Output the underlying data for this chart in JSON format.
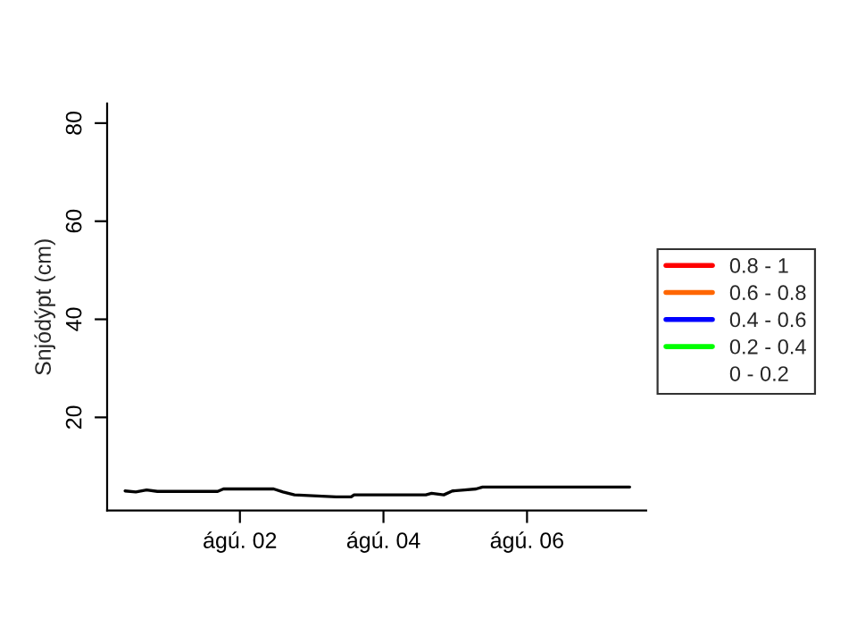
{
  "chart_data": {
    "type": "line",
    "ylabel": "Snjódýpt (cm)",
    "x": [
      0.4,
      0.55,
      0.7,
      0.85,
      1.69,
      1.77,
      2.47,
      2.6,
      2.76,
      3.34,
      3.55,
      3.59,
      4.59,
      4.67,
      4.84,
      4.96,
      5.13,
      5.29,
      5.38,
      7.43
    ],
    "series": [
      {
        "color": "#000000",
        "values": [
          5.0,
          4.8,
          5.2,
          4.9,
          4.9,
          5.4,
          5.4,
          4.8,
          4.2,
          3.8,
          3.8,
          4.2,
          4.2,
          4.5,
          4.2,
          5.0,
          5.2,
          5.4,
          5.8,
          5.8
        ]
      },
      {
        "name": "0.8 - 1",
        "color": "#ff0000",
        "values": [
          null,
          null,
          null,
          null,
          null,
          null,
          null,
          null,
          null,
          null,
          null,
          null,
          null,
          null,
          null,
          null,
          null,
          null,
          null,
          null
        ]
      },
      {
        "name": "0.6 - 0.8",
        "color": "#ff6600",
        "values": [
          null,
          null,
          null,
          null,
          null,
          null,
          null,
          null,
          null,
          null,
          null,
          null,
          null,
          null,
          null,
          null,
          null,
          null,
          null,
          null
        ]
      },
      {
        "name": "0.4 - 0.6",
        "color": "#0000ff",
        "values": [
          null,
          null,
          null,
          null,
          null,
          null,
          null,
          null,
          null,
          null,
          null,
          null,
          null,
          null,
          null,
          null,
          null,
          null,
          null,
          null
        ]
      },
      {
        "name": "0.2 - 0.4",
        "color": "#00ff00",
        "values": [
          null,
          null,
          null,
          null,
          null,
          null,
          null,
          null,
          null,
          null,
          null,
          null,
          null,
          null,
          null,
          null,
          null,
          null,
          null,
          null
        ]
      },
      {
        "name": "0 - 0.2",
        "values": [
          null,
          null,
          null,
          null,
          null,
          null,
          null,
          null,
          null,
          null,
          null,
          null,
          null,
          null,
          null,
          null,
          null,
          null,
          null,
          null
        ]
      }
    ],
    "xlim": [
      0.15,
      7.66
    ],
    "xticks": [
      {
        "value": 2,
        "label": "ágú. 02"
      },
      {
        "value": 4,
        "label": "ágú. 04"
      },
      {
        "value": 6,
        "label": "ágú. 06"
      }
    ],
    "ylim": [
      1,
      84
    ],
    "yticks": [
      20,
      40,
      60,
      80
    ],
    "legend": "right",
    "grid": false
  }
}
